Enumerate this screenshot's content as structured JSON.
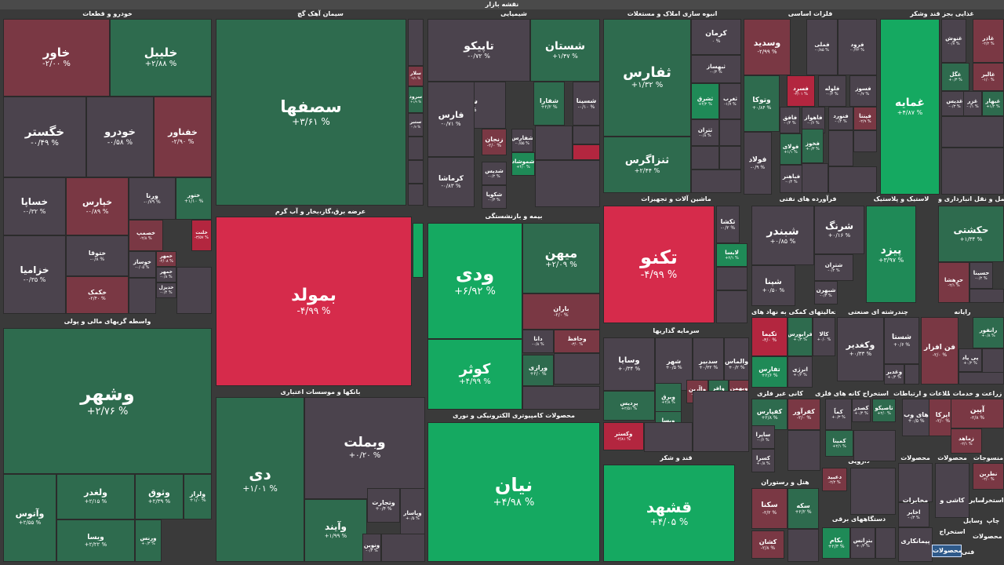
{
  "title": "نقشه بازار",
  "colors": {
    "gray": "#4b434d",
    "up1": "#2e6b4e",
    "up2": "#1f8a57",
    "up3": "#15a961",
    "down1": "#7a3844",
    "down2": "#b3263f",
    "down3": "#d62b4b"
  },
  "headers": [
    "خودرو و قطعات",
    "سیمان آهک گچ",
    "شیمیایی",
    "انبوه سازی املاک و مستغلات",
    "فلزات اساسی",
    "غذایی بجز قند وشکر",
    "واسطه گریهای مالی و پولی",
    "عرضه برق،گاز،بخار و آب گرم",
    "بیمه و بازنشستگی",
    "ماشین آلات و تجهیزات",
    "فرآورده های نفتی",
    "لاستیک و پلاستیک",
    "حمل و نقل انبارداری و",
    "بانکها و موسسات اعتباری",
    "سرمایه گذاریها",
    "فعالیتهای کمکی به نهاد های",
    "چندرشته ای صنعتی",
    "رایانه",
    "محصولات کامپیوتری الکترونیکی و نوری",
    "کانی غیر فلزی",
    "استخراج کانه های فلزی",
    "اطلاعات و ارتباطات",
    "زراعت و خدمات",
    "قند و شکر",
    "دارویی",
    "هتل و رستوران",
    "دستگاههای برقی",
    "محصولات",
    "محصولات",
    "منسوجات",
    "خرد فعالیت محصولات"
  ],
  "tiles": [
    {
      "name": "خاور",
      "change": "-۲/۰۰ %",
      "tone": "down1"
    },
    {
      "name": "خلیبل",
      "change": "+۲/۸۸ %",
      "tone": "up1"
    },
    {
      "name": "خگستر",
      "change": "-۰/۴۹ %",
      "tone": "gray"
    },
    {
      "name": "خودرو",
      "change": "-۰/۵۸ %",
      "tone": "gray"
    },
    {
      "name": "خفناور",
      "change": "-۲/۹۰ %",
      "tone": "down1"
    },
    {
      "name": "خساپا",
      "change": "-۰/۳۲ %",
      "tone": "gray"
    },
    {
      "name": "خپارس",
      "change": "-۰/۸۹ %",
      "tone": "down1"
    },
    {
      "name": "ورنا",
      "change": "-۰/۷۹ %",
      "tone": "gray"
    },
    {
      "name": "ختور",
      "change": "+۱/۱۰ %",
      "tone": "up1"
    },
    {
      "name": "ختوقا",
      "change": "-۰/۸ %",
      "tone": "gray"
    },
    {
      "name": "خصمپ",
      "change": "-۲/۸ %",
      "tone": "down1"
    },
    {
      "name": "خمهر",
      "change": "-۲/۰۸ %",
      "tone": "down1"
    },
    {
      "name": "خلنت",
      "change": "-۳/۵۷ %",
      "tone": "down2"
    },
    {
      "name": "خزامیا",
      "change": "-۰/۳۵ %",
      "tone": "gray"
    },
    {
      "name": "خکمک",
      "change": "-۲/۴۰ %",
      "tone": "down1"
    },
    {
      "name": "خوساز",
      "change": "-۰/۰۵ %",
      "tone": "gray"
    },
    {
      "name": "خمهر",
      "change": "-۰/۸ %",
      "tone": "gray"
    },
    {
      "name": "خدیزل",
      "change": "-۰/۴ %",
      "tone": "gray"
    },
    {
      "name": "سصفها",
      "change": "+۳/۶۱ %",
      "tone": "up1"
    },
    {
      "name": "سلار",
      "change": "-۲/۱ %",
      "tone": "down1"
    },
    {
      "name": "سرود",
      "change": "+۱/۹ %",
      "tone": "up1"
    },
    {
      "name": "ستبر",
      "change": "-۰/۷ %",
      "tone": "gray"
    },
    {
      "name": "تاپیکو",
      "change": "-۰/۷۲ %",
      "tone": "gray"
    },
    {
      "name": "شستان",
      "change": "+۱/۴۷ %",
      "tone": "up1"
    },
    {
      "name": "شپلی",
      "change": "-۰/۵۰ %",
      "tone": "gray"
    },
    {
      "name": "شفارا",
      "change": "+۲/۲ %",
      "tone": "up1"
    },
    {
      "name": "شسینا",
      "change": "-۰/۱۰ %",
      "tone": "gray"
    },
    {
      "name": "فارس",
      "change": "-۰/۷۱ %",
      "tone": "gray"
    },
    {
      "name": "زنجان",
      "change": "-۲/۰ %",
      "tone": "down1"
    },
    {
      "name": "شفارس",
      "change": "-۰/۵۵ %",
      "tone": "gray"
    },
    {
      "name": "شموشاد",
      "change": "+۴/۰ %",
      "tone": "up2"
    },
    {
      "name": "کرماشا",
      "change": "-۰/۸۳ %",
      "tone": "gray"
    },
    {
      "name": "شدیس",
      "change": "-۰/۲ %",
      "tone": "gray"
    },
    {
      "name": "شکویا",
      "change": "-۰/۳ %",
      "tone": "gray"
    },
    {
      "name": "ثفارس",
      "change": "+۱/۳۲ %",
      "tone": "up1"
    },
    {
      "name": "کرمان",
      "change": "۰ %",
      "tone": "gray"
    },
    {
      "name": "ثبهساز",
      "change": "-۰/۲ %",
      "tone": "gray"
    },
    {
      "name": "ثشرق",
      "change": "+۲/۲ %",
      "tone": "up2"
    },
    {
      "name": "ثغرب",
      "change": "-۱/۷ %",
      "tone": "gray"
    },
    {
      "name": "ثنزاگرس",
      "change": "+۲/۴۴ %",
      "tone": "up1"
    },
    {
      "name": "ثتران",
      "change": "-۰/۸ %",
      "tone": "gray"
    },
    {
      "name": "وسدید",
      "change": "-۲/۹۹ %",
      "tone": "down1"
    },
    {
      "name": "فملی",
      "change": "-۰/۸۵ %",
      "tone": "gray"
    },
    {
      "name": "فرود",
      "change": "-۰/۴۲ %",
      "tone": "gray"
    },
    {
      "name": "وتوکا",
      "change": "+۰/۸۴ %",
      "tone": "up1"
    },
    {
      "name": "فسرد",
      "change": "-۳/۰۱ %",
      "tone": "down2"
    },
    {
      "name": "فلوله",
      "change": "-۰/۲ %",
      "tone": "gray"
    },
    {
      "name": "فسوز",
      "change": "-۰/۷ %",
      "tone": "gray"
    },
    {
      "name": "فافق",
      "change": "-۰/۴ %",
      "tone": "gray"
    },
    {
      "name": "فاهواز",
      "change": "-۰/۶ %",
      "tone": "gray"
    },
    {
      "name": "فنورد",
      "change": "-۰/۴ %",
      "tone": "gray"
    },
    {
      "name": "فپنتا",
      "change": "-۲/۹ %",
      "tone": "down1"
    },
    {
      "name": "فولاد",
      "change": "-۰/۹ %",
      "tone": "gray"
    },
    {
      "name": "فولای",
      "change": "+۱/۱ %",
      "tone": "up1"
    },
    {
      "name": "فخوز",
      "change": "+۰/۳ %",
      "tone": "up1"
    },
    {
      "name": "فباهنر",
      "change": "-۰/۴ %",
      "tone": "gray"
    },
    {
      "name": "غمایه",
      "change": "+۴/۸۷ %",
      "tone": "up3"
    },
    {
      "name": "غنوش",
      "change": "-۰/۷ %",
      "tone": "gray"
    },
    {
      "name": "غاذر",
      "change": "-۲/۲ %",
      "tone": "down1"
    },
    {
      "name": "غگل",
      "change": "+۰/۳ %",
      "tone": "up1"
    },
    {
      "name": "غالبر",
      "change": "-۱/۰ %",
      "tone": "down1"
    },
    {
      "name": "غدیس",
      "change": "-۰/۳ %",
      "tone": "gray"
    },
    {
      "name": "غزر",
      "change": "-۰/۱ %",
      "tone": "gray"
    },
    {
      "name": "غبهار",
      "change": "+۱/۲ %",
      "tone": "up1"
    },
    {
      "name": "وشهر",
      "change": "+۲/۷۶ %",
      "tone": "up1"
    },
    {
      "name": "وآتوس",
      "change": "+۲/۵۵ %",
      "tone": "up1"
    },
    {
      "name": "ولغدر",
      "change": "+۲/۱۵ %",
      "tone": "up1"
    },
    {
      "name": "وثوق",
      "change": "+۲/۳۹ %",
      "tone": "up1"
    },
    {
      "name": "ولراز",
      "change": "+۱/۰ %",
      "tone": "up1"
    },
    {
      "name": "ویسا",
      "change": "+۲/۲۲ %",
      "tone": "up1"
    },
    {
      "name": "ورنس",
      "change": "+۰/۳ %",
      "tone": "up1"
    },
    {
      "name": "بمولد",
      "change": "-۴/۹۹ %",
      "tone": "down3"
    },
    {
      "name": "ودی",
      "change": "+۶/۹۲ %",
      "tone": "up3"
    },
    {
      "name": "میهن",
      "change": "+۲/۰۹ %",
      "tone": "up1"
    },
    {
      "name": "باران",
      "change": "-۲/۰ %",
      "tone": "down1"
    },
    {
      "name": "کوثر",
      "change": "+۴/۹۹ %",
      "tone": "up3"
    },
    {
      "name": "دانا",
      "change": "-۰/۸ %",
      "tone": "gray"
    },
    {
      "name": "وحافظ",
      "change": "-۳/۰ %",
      "tone": "down1"
    },
    {
      "name": "ورازی",
      "change": "+۲/۰ %",
      "tone": "up1"
    },
    {
      "name": "تکنو",
      "change": "-۴/۹۹ %",
      "tone": "down3"
    },
    {
      "name": "تکشا",
      "change": "-۰/۲ %",
      "tone": "gray"
    },
    {
      "name": "لابسا",
      "change": "+۲/۱ %",
      "tone": "up2"
    },
    {
      "name": "شبندر",
      "change": "+۰/۸۵ %",
      "tone": "gray"
    },
    {
      "name": "شرنگ",
      "change": "+۰/۱۶ %",
      "tone": "gray"
    },
    {
      "name": "شپنا",
      "change": "+۰/۵۰ %",
      "tone": "gray"
    },
    {
      "name": "شتران",
      "change": "-۰/۲ %",
      "tone": "gray"
    },
    {
      "name": "شبهرن",
      "change": "-۰/۳ %",
      "tone": "gray"
    },
    {
      "name": "پیزد",
      "change": "+۳/۹۷ %",
      "tone": "up2"
    },
    {
      "name": "حکشتی",
      "change": "+۱/۳۴ %",
      "tone": "up1"
    },
    {
      "name": "حرهشا",
      "change": "-۲/۱ %",
      "tone": "down1"
    },
    {
      "name": "حسینا",
      "change": "-۰/۲ %",
      "tone": "gray"
    },
    {
      "name": "وبملت",
      "change": "+۰/۲۰ %",
      "tone": "gray"
    },
    {
      "name": "دی",
      "change": "+۱/۰۱ %",
      "tone": "up1"
    },
    {
      "name": "وآیند",
      "change": "+۱/۹۹ %",
      "tone": "up1"
    },
    {
      "name": "وتجارت",
      "change": "+۰/۴ %",
      "tone": "gray"
    },
    {
      "name": "وپاسار",
      "change": "+۰/۵ %",
      "tone": "gray"
    },
    {
      "name": "ونوین",
      "change": "-۰/۳ %",
      "tone": "gray"
    },
    {
      "name": "وسایا",
      "change": "+۰/۳۴ %",
      "tone": "gray"
    },
    {
      "name": "شهر",
      "change": "+۰/۵ %",
      "tone": "gray"
    },
    {
      "name": "سدبیر",
      "change": "+۰/۳۲ %",
      "tone": "gray"
    },
    {
      "name": "والماس",
      "change": "+۰/۲ %",
      "tone": "gray"
    },
    {
      "name": "پردیس",
      "change": "+۲/۵۱ %",
      "tone": "up1"
    },
    {
      "name": "وبرق",
      "change": "+۲/۸ %",
      "tone": "up1"
    },
    {
      "name": "واآرین",
      "change": "-۲/۰ %",
      "tone": "down1"
    },
    {
      "name": "وافر",
      "change": "+۱/۰ %",
      "tone": "up1"
    },
    {
      "name": "وبهمن",
      "change": "-۲/۸ %",
      "tone": "down1"
    },
    {
      "name": "ویسا",
      "change": "+۲/۲ %",
      "tone": "up1"
    },
    {
      "name": "وکستر",
      "change": "-۲/۸۱ %",
      "tone": "down2"
    },
    {
      "name": "تکیما",
      "change": "-۳/۰ %",
      "tone": "down2"
    },
    {
      "name": "فرابورس",
      "change": "+۰/۳ %",
      "tone": "up1"
    },
    {
      "name": "کالا",
      "change": "+۰/۰ %",
      "tone": "gray"
    },
    {
      "name": "تفارس",
      "change": "+۲/۶ %",
      "tone": "up2"
    },
    {
      "name": "انرژی",
      "change": "+۰/۲ %",
      "tone": "gray"
    },
    {
      "name": "وکغدیر",
      "change": "+۰/۳۳ %",
      "tone": "gray"
    },
    {
      "name": "شستا",
      "change": "+۰/۶ %",
      "tone": "gray"
    },
    {
      "name": "وغدیر",
      "change": "+۰/۴ %",
      "tone": "gray"
    },
    {
      "name": "فن افزار",
      "change": "-۲/۰ %",
      "tone": "down1"
    },
    {
      "name": "رانفور",
      "change": "+۰/۸ %",
      "tone": "up1"
    },
    {
      "name": "پی پاد",
      "change": "+۰/۲ %",
      "tone": "gray"
    },
    {
      "name": "نیان",
      "change": "+۴/۹۸ %",
      "tone": "up3"
    },
    {
      "name": "کفپارس",
      "change": "+۲/۸ %",
      "tone": "up1"
    },
    {
      "name": "کفرآور",
      "change": "-۲/۰ %",
      "tone": "down1"
    },
    {
      "name": "ساپرا",
      "change": "-۰/۶ %",
      "tone": "gray"
    },
    {
      "name": "کسرا",
      "change": "+۰/۸ %",
      "tone": "gray"
    },
    {
      "name": "کماً",
      "change": "+۰/۳ %",
      "tone": "gray"
    },
    {
      "name": "کصدر",
      "change": "+۰/۴ %",
      "tone": "gray"
    },
    {
      "name": "تاصیکو",
      "change": "+۲/۰ %",
      "tone": "up1"
    },
    {
      "name": "کمینا",
      "change": "+۲/۱ %",
      "tone": "up1"
    },
    {
      "name": "های وب",
      "change": "+۰/۵ %",
      "tone": "gray"
    },
    {
      "name": "ایرکا",
      "change": "-۲/۰ %",
      "tone": "down1"
    },
    {
      "name": "آپین",
      "change": "-۲/۸ %",
      "tone": "down1"
    },
    {
      "name": "زماهد",
      "change": "-۲/۱ %",
      "tone": "down1"
    },
    {
      "name": "قشهد",
      "change": "+۴/۰۵ %",
      "tone": "up3"
    },
    {
      "name": "دعبید",
      "change": "-۲/۲ %",
      "tone": "down1"
    },
    {
      "name": "سکنا",
      "change": "-۲/۲ %",
      "tone": "down1"
    },
    {
      "name": "سکه",
      "change": "+۲/۲ %",
      "tone": "up1"
    },
    {
      "name": "بکام",
      "change": "+۲/۳ %",
      "tone": "up2"
    },
    {
      "name": "بترانس",
      "change": "+۰/۳ %",
      "tone": "gray"
    },
    {
      "name": "کشان",
      "change": "-۲/۸ %",
      "tone": "down1"
    },
    {
      "name": "اخابر",
      "change": "-۰/۳ %",
      "tone": "gray"
    },
    {
      "name": "نطرین",
      "change": "-۲/۰ %",
      "tone": "down1"
    }
  ],
  "footer_labels": [
    "کاشی و",
    "مخابرات",
    "سایر",
    "استخرا",
    "چاپ",
    "وسایل",
    "استخراج",
    "پیمانکاری",
    "فنی"
  ],
  "tooltip": "محصولات"
}
